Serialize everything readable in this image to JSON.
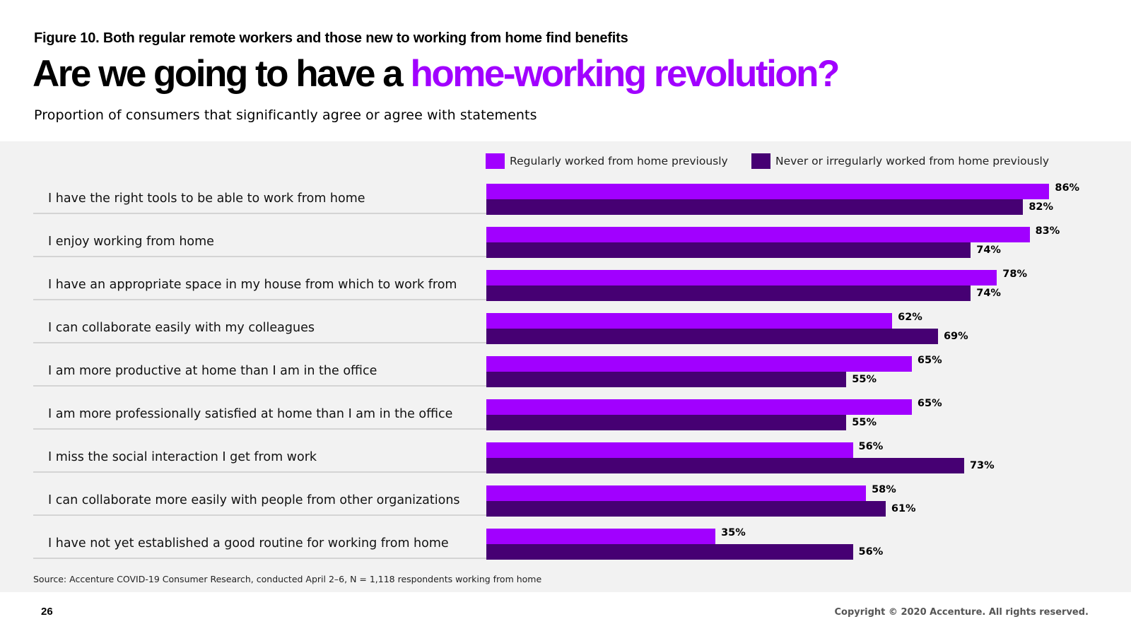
{
  "header": {
    "figure_label": "Figure 10. Both regular remote workers and those new to working from home find benefits",
    "headline_plain": "Are we going to have a ",
    "headline_accent": "home-working revolution?",
    "subtitle": "Proportion of consumers that significantly agree or agree with statements"
  },
  "colors": {
    "accent": "#a100ff",
    "series_regular": "#a100ff",
    "series_never": "#460073",
    "panel_bg": "#f2f2f2"
  },
  "chart_data": {
    "type": "bar",
    "orientation": "horizontal",
    "categories": [
      "I have the right tools to be able to work from home",
      "I enjoy working from home",
      "I have an appropriate space in my house from which to work from",
      "I can collaborate easily with my colleagues",
      "I am more productive at home than I am in the office",
      "I am more professionally satisfied at home than I am in the office",
      "I miss the social interaction I get from work",
      "I can collaborate more easily with people from other organizations",
      "I have not yet established a good routine for working from home"
    ],
    "series": [
      {
        "name": "Regularly worked from home previously",
        "color": "#a100ff",
        "values": [
          86,
          83,
          78,
          62,
          65,
          65,
          56,
          58,
          35
        ],
        "labels": [
          "86%",
          "83%",
          "78%",
          "62%",
          "65%",
          "65%",
          "56%",
          "58%",
          "35%"
        ]
      },
      {
        "name": "Never or irregularly worked from home previously",
        "color": "#460073",
        "values": [
          82,
          74,
          74,
          69,
          55,
          55,
          73,
          61,
          56
        ],
        "labels": [
          "82%",
          "74%",
          "74%",
          "69%",
          "55%",
          "55%",
          "73%",
          "61%",
          "56%"
        ]
      }
    ],
    "xlim": [
      0,
      100
    ],
    "legend": "top",
    "grid": false
  },
  "footer": {
    "source": "Source: Accenture COVID-19 Consumer Research, conducted April 2–6, N = 1,118 respondents working from home",
    "page_number": "26",
    "copyright": "Copyright © 2020 Accenture. All rights reserved."
  }
}
